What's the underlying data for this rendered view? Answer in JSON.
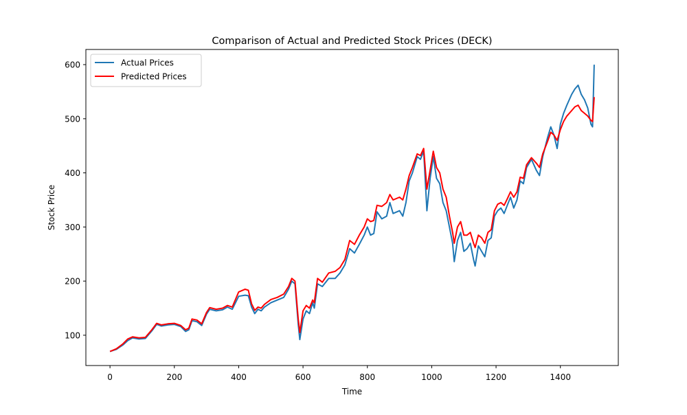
{
  "chart_data": {
    "type": "line",
    "title": "Comparison of Actual and Predicted Stock Prices (DECK)",
    "xlabel": "Time",
    "ylabel": "Stock Price",
    "xlim": [
      -75,
      1580
    ],
    "ylim": [
      44,
      628
    ],
    "xticks": [
      0,
      200,
      400,
      600,
      800,
      1000,
      1200,
      1400
    ],
    "yticks": [
      100,
      200,
      300,
      400,
      500,
      600
    ],
    "grid": false,
    "legend_position": "upper left",
    "series": [
      {
        "name": "Actual Prices",
        "color": "#1f77b4",
        "points": [
          [
            0,
            70
          ],
          [
            20,
            74
          ],
          [
            40,
            82
          ],
          [
            55,
            90
          ],
          [
            70,
            95
          ],
          [
            90,
            93
          ],
          [
            110,
            94
          ],
          [
            130,
            108
          ],
          [
            145,
            120
          ],
          [
            160,
            117
          ],
          [
            180,
            119
          ],
          [
            200,
            120
          ],
          [
            220,
            116
          ],
          [
            235,
            107
          ],
          [
            245,
            110
          ],
          [
            255,
            127
          ],
          [
            270,
            125
          ],
          [
            285,
            118
          ],
          [
            300,
            139
          ],
          [
            310,
            148
          ],
          [
            330,
            145
          ],
          [
            350,
            147
          ],
          [
            365,
            152
          ],
          [
            380,
            148
          ],
          [
            400,
            172
          ],
          [
            420,
            174
          ],
          [
            430,
            173
          ],
          [
            440,
            152
          ],
          [
            450,
            140
          ],
          [
            460,
            148
          ],
          [
            470,
            145
          ],
          [
            480,
            152
          ],
          [
            500,
            160
          ],
          [
            520,
            165
          ],
          [
            540,
            170
          ],
          [
            555,
            185
          ],
          [
            565,
            200
          ],
          [
            575,
            195
          ],
          [
            585,
            120
          ],
          [
            590,
            92
          ],
          [
            600,
            130
          ],
          [
            610,
            145
          ],
          [
            620,
            140
          ],
          [
            630,
            160
          ],
          [
            635,
            150
          ],
          [
            645,
            195
          ],
          [
            660,
            190
          ],
          [
            680,
            205
          ],
          [
            700,
            205
          ],
          [
            715,
            215
          ],
          [
            730,
            230
          ],
          [
            745,
            260
          ],
          [
            760,
            252
          ],
          [
            775,
            268
          ],
          [
            790,
            285
          ],
          [
            800,
            300
          ],
          [
            810,
            285
          ],
          [
            820,
            288
          ],
          [
            830,
            328
          ],
          [
            845,
            315
          ],
          [
            860,
            320
          ],
          [
            870,
            345
          ],
          [
            880,
            325
          ],
          [
            900,
            330
          ],
          [
            910,
            320
          ],
          [
            920,
            345
          ],
          [
            930,
            385
          ],
          [
            940,
            400
          ],
          [
            955,
            430
          ],
          [
            965,
            425
          ],
          [
            975,
            440
          ],
          [
            985,
            330
          ],
          [
            995,
            390
          ],
          [
            1005,
            430
          ],
          [
            1015,
            390
          ],
          [
            1025,
            380
          ],
          [
            1035,
            345
          ],
          [
            1045,
            330
          ],
          [
            1055,
            300
          ],
          [
            1065,
            270
          ],
          [
            1070,
            236
          ],
          [
            1080,
            275
          ],
          [
            1090,
            290
          ],
          [
            1100,
            255
          ],
          [
            1110,
            260
          ],
          [
            1120,
            270
          ],
          [
            1130,
            240
          ],
          [
            1135,
            228
          ],
          [
            1145,
            265
          ],
          [
            1155,
            255
          ],
          [
            1165,
            245
          ],
          [
            1175,
            275
          ],
          [
            1185,
            280
          ],
          [
            1195,
            320
          ],
          [
            1205,
            330
          ],
          [
            1215,
            335
          ],
          [
            1225,
            325
          ],
          [
            1235,
            340
          ],
          [
            1245,
            355
          ],
          [
            1255,
            335
          ],
          [
            1265,
            350
          ],
          [
            1275,
            385
          ],
          [
            1285,
            380
          ],
          [
            1295,
            410
          ],
          [
            1310,
            425
          ],
          [
            1325,
            405
          ],
          [
            1335,
            395
          ],
          [
            1345,
            430
          ],
          [
            1360,
            465
          ],
          [
            1370,
            485
          ],
          [
            1380,
            470
          ],
          [
            1390,
            445
          ],
          [
            1400,
            490
          ],
          [
            1410,
            510
          ],
          [
            1420,
            525
          ],
          [
            1435,
            545
          ],
          [
            1445,
            555
          ],
          [
            1455,
            562
          ],
          [
            1465,
            545
          ],
          [
            1475,
            535
          ],
          [
            1485,
            520
          ],
          [
            1495,
            490
          ],
          [
            1500,
            485
          ],
          [
            1505,
            600
          ]
        ]
      },
      {
        "name": "Predicted Prices",
        "color": "#ff0000",
        "points": [
          [
            0,
            70
          ],
          [
            20,
            75
          ],
          [
            40,
            84
          ],
          [
            55,
            93
          ],
          [
            70,
            97
          ],
          [
            90,
            95
          ],
          [
            110,
            96
          ],
          [
            130,
            110
          ],
          [
            145,
            122
          ],
          [
            160,
            119
          ],
          [
            180,
            121
          ],
          [
            200,
            122
          ],
          [
            220,
            118
          ],
          [
            235,
            110
          ],
          [
            245,
            113
          ],
          [
            255,
            130
          ],
          [
            270,
            128
          ],
          [
            285,
            121
          ],
          [
            300,
            142
          ],
          [
            310,
            151
          ],
          [
            330,
            148
          ],
          [
            350,
            150
          ],
          [
            365,
            155
          ],
          [
            380,
            152
          ],
          [
            400,
            180
          ],
          [
            420,
            185
          ],
          [
            430,
            183
          ],
          [
            440,
            158
          ],
          [
            450,
            146
          ],
          [
            460,
            152
          ],
          [
            470,
            150
          ],
          [
            480,
            157
          ],
          [
            500,
            166
          ],
          [
            520,
            170
          ],
          [
            540,
            176
          ],
          [
            555,
            190
          ],
          [
            565,
            205
          ],
          [
            575,
            200
          ],
          [
            585,
            130
          ],
          [
            590,
            105
          ],
          [
            600,
            145
          ],
          [
            610,
            155
          ],
          [
            620,
            150
          ],
          [
            630,
            165
          ],
          [
            635,
            160
          ],
          [
            645,
            205
          ],
          [
            660,
            198
          ],
          [
            680,
            215
          ],
          [
            700,
            218
          ],
          [
            715,
            225
          ],
          [
            730,
            240
          ],
          [
            745,
            275
          ],
          [
            760,
            268
          ],
          [
            775,
            285
          ],
          [
            790,
            300
          ],
          [
            800,
            315
          ],
          [
            810,
            310
          ],
          [
            820,
            312
          ],
          [
            830,
            340
          ],
          [
            845,
            338
          ],
          [
            860,
            345
          ],
          [
            870,
            360
          ],
          [
            880,
            350
          ],
          [
            900,
            355
          ],
          [
            910,
            350
          ],
          [
            920,
            370
          ],
          [
            930,
            395
          ],
          [
            940,
            410
          ],
          [
            955,
            435
          ],
          [
            965,
            432
          ],
          [
            975,
            445
          ],
          [
            985,
            370
          ],
          [
            995,
            405
          ],
          [
            1005,
            440
          ],
          [
            1015,
            410
          ],
          [
            1025,
            400
          ],
          [
            1035,
            370
          ],
          [
            1045,
            355
          ],
          [
            1055,
            320
          ],
          [
            1065,
            290
          ],
          [
            1070,
            270
          ],
          [
            1080,
            300
          ],
          [
            1090,
            310
          ],
          [
            1100,
            285
          ],
          [
            1110,
            285
          ],
          [
            1120,
            290
          ],
          [
            1130,
            270
          ],
          [
            1135,
            262
          ],
          [
            1145,
            285
          ],
          [
            1155,
            280
          ],
          [
            1165,
            270
          ],
          [
            1175,
            290
          ],
          [
            1185,
            295
          ],
          [
            1195,
            330
          ],
          [
            1205,
            342
          ],
          [
            1215,
            345
          ],
          [
            1225,
            340
          ],
          [
            1235,
            352
          ],
          [
            1245,
            365
          ],
          [
            1255,
            355
          ],
          [
            1265,
            365
          ],
          [
            1275,
            392
          ],
          [
            1285,
            390
          ],
          [
            1295,
            415
          ],
          [
            1310,
            428
          ],
          [
            1325,
            418
          ],
          [
            1335,
            410
          ],
          [
            1345,
            435
          ],
          [
            1360,
            458
          ],
          [
            1370,
            475
          ],
          [
            1380,
            470
          ],
          [
            1390,
            460
          ],
          [
            1400,
            480
          ],
          [
            1410,
            495
          ],
          [
            1420,
            505
          ],
          [
            1435,
            515
          ],
          [
            1445,
            522
          ],
          [
            1455,
            525
          ],
          [
            1465,
            515
          ],
          [
            1475,
            510
          ],
          [
            1485,
            505
          ],
          [
            1495,
            497
          ],
          [
            1500,
            495
          ],
          [
            1505,
            540
          ]
        ]
      }
    ]
  }
}
